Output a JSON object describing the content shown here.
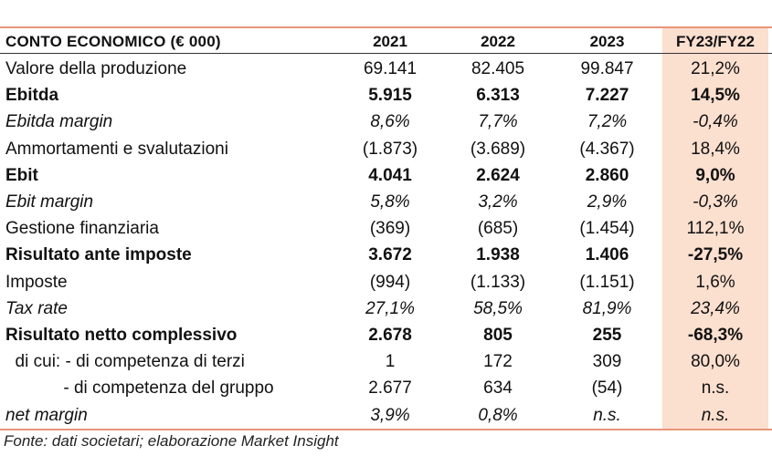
{
  "header": {
    "label": "CONTO ECONOMICO (€ 000)",
    "columns": [
      "2021",
      "2022",
      "2023",
      "FY23/FY22"
    ]
  },
  "rows": [
    {
      "label": "Valore della produzione",
      "values": [
        "69.141",
        "82.405",
        "99.847",
        "21,2%"
      ],
      "style": "normal"
    },
    {
      "label": "Ebitda",
      "values": [
        "5.915",
        "6.313",
        "7.227",
        "14,5%"
      ],
      "style": "bold"
    },
    {
      "label": "Ebitda margin",
      "values": [
        "8,6%",
        "7,7%",
        "7,2%",
        "-0,4%"
      ],
      "style": "italic"
    },
    {
      "label": "Ammortamenti e svalutazioni",
      "values": [
        "(1.873)",
        "(3.689)",
        "(4.367)",
        "18,4%"
      ],
      "style": "normal"
    },
    {
      "label": "Ebit",
      "values": [
        "4.041",
        "2.624",
        "2.860",
        "9,0%"
      ],
      "style": "bold"
    },
    {
      "label": "Ebit margin",
      "values": [
        "5,8%",
        "3,2%",
        "2,9%",
        "-0,3%"
      ],
      "style": "italic"
    },
    {
      "label": "Gestione finanziaria",
      "values": [
        "(369)",
        "(685)",
        "(1.454)",
        "112,1%"
      ],
      "style": "normal"
    },
    {
      "label": "Risultato ante imposte",
      "values": [
        "3.672",
        "1.938",
        "1.406",
        "-27,5%"
      ],
      "style": "bold"
    },
    {
      "label": "Imposte",
      "values": [
        "(994)",
        "(1.133)",
        "(1.151)",
        "1,6%"
      ],
      "style": "normal"
    },
    {
      "label": "Tax rate",
      "values": [
        "27,1%",
        "58,5%",
        "81,9%",
        "23,4%"
      ],
      "style": "italic"
    },
    {
      "label": "Risultato netto complessivo",
      "values": [
        "2.678",
        "805",
        "255",
        "-68,3%"
      ],
      "style": "bold"
    },
    {
      "label": "  di cui: - di competenza di terzi",
      "values": [
        "1",
        "172",
        "309",
        "80,0%"
      ],
      "style": "normal"
    },
    {
      "label": "            - di competenza del gruppo",
      "values": [
        "2.677",
        "634",
        "(54)",
        "n.s."
      ],
      "style": "normal"
    },
    {
      "label": "net margin",
      "values": [
        "3,9%",
        "0,8%",
        "n.s.",
        "n.s."
      ],
      "style": "italic"
    }
  ],
  "footnote": "Fonte: dati societari; elaborazione Market Insight",
  "colors": {
    "rule": "#e8957a",
    "highlight_column": "#fbdfcf",
    "text": "#111111"
  }
}
